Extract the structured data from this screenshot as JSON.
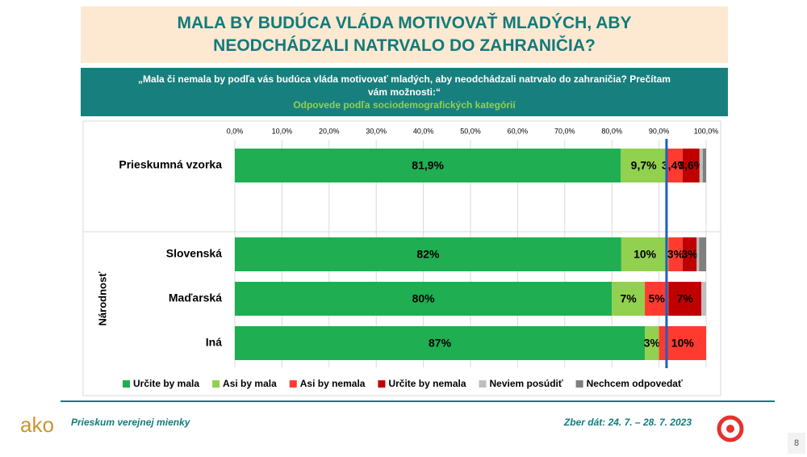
{
  "slide": {
    "logo": "ako",
    "footer_left": "Prieskum verejnej mienky",
    "footer_right": "Zber dát: 24. 7. – 28. 7. 2023",
    "page_number": "8"
  },
  "chart_data": {
    "type": "stacked-bar-horizontal",
    "title": "MALA BY BUDÚCA VLÁDA MOTIVOVAŤ MLADÝCH, ABY NEODCHÁDZALI NATRVALO DO ZAHRANIČIA?",
    "question": "„Mala či nemala by podľa vás budúca vláda motivovať mladých, aby neodchádzali natrvalo do zahraničia? Prečítam vám možnosti:“",
    "subtitle": "Odpovede podľa sociodemografických kategórií",
    "group_label": "Národnosť",
    "categories": [
      "Prieskumná vzorka",
      "Slovenská",
      "Maďarská",
      "Iná"
    ],
    "series": [
      {
        "name": "Určite by mala",
        "color": "#1fae52",
        "values": [
          81.9,
          82,
          80,
          87
        ],
        "value_labels": [
          "81,9%",
          "82%",
          "80%",
          "87%"
        ]
      },
      {
        "name": "Asi by mala",
        "color": "#92d050",
        "values": [
          9.7,
          10,
          7,
          3
        ],
        "value_labels": [
          "9,7%",
          "10%",
          "7%",
          "3%"
        ]
      },
      {
        "name": "Asi by nemala",
        "color": "#ff3b2f",
        "values": [
          3.4,
          3,
          5,
          10
        ],
        "value_labels": [
          "3,4%",
          "3%",
          "5%",
          "10%"
        ]
      },
      {
        "name": "Určite by nemala",
        "color": "#c00000",
        "values": [
          3.6,
          3,
          7,
          0
        ],
        "value_labels": [
          "3,6%",
          "3%",
          "7%",
          null
        ]
      },
      {
        "name": "Neviem posúdiť",
        "color": "#bfbfbf",
        "values": [
          0.7,
          0.5,
          1,
          0
        ],
        "value_labels": [
          null,
          null,
          null,
          null
        ]
      },
      {
        "name": "Nechcem odpovedať",
        "color": "#7f7f7f",
        "values": [
          0.7,
          1.5,
          0,
          0
        ],
        "value_labels": [
          null,
          null,
          null,
          null
        ]
      }
    ],
    "reference_line": 91.6,
    "reference_color": "#1f5fbf",
    "xlim": [
      0,
      100
    ],
    "xticks": [
      {
        "value": 0,
        "label": "0,0%"
      },
      {
        "value": 10,
        "label": "10,0%"
      },
      {
        "value": 20,
        "label": "20,0%"
      },
      {
        "value": 30,
        "label": "30,0%"
      },
      {
        "value": 40,
        "label": "40,0%"
      },
      {
        "value": 50,
        "label": "50,0%"
      },
      {
        "value": 60,
        "label": "60,0%"
      },
      {
        "value": 70,
        "label": "70,0%"
      },
      {
        "value": 80,
        "label": "80,0%"
      },
      {
        "value": 90,
        "label": "90,0%"
      },
      {
        "value": 100,
        "label": "100,0%"
      }
    ],
    "grid": true,
    "legend": "bottom"
  }
}
